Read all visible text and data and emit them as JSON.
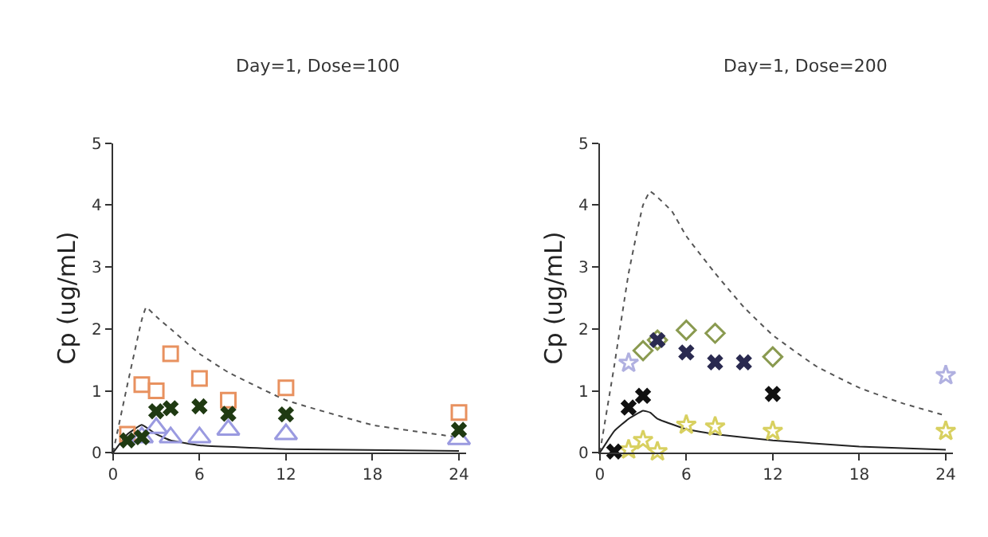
{
  "chart_data": [
    {
      "type": "scatter",
      "title": "Day=1, Dose=100",
      "ylabel": "Cp (ug/mL)",
      "xlim": [
        0,
        24.5
      ],
      "xticks": [
        0,
        6,
        12,
        18,
        24
      ],
      "ylim": [
        0,
        5
      ],
      "yticks": [
        0,
        1,
        2,
        3,
        4,
        5
      ],
      "series": [
        {
          "type": "line",
          "color": "#555555",
          "line_style": "dotted",
          "marker": "none",
          "x": [
            0,
            1,
            2,
            2.3,
            3,
            4,
            6,
            8,
            12,
            18,
            24
          ],
          "values": [
            0,
            1.1,
            2.15,
            2.35,
            2.2,
            2.0,
            1.6,
            1.3,
            0.85,
            0.45,
            0.25
          ]
        },
        {
          "type": "line",
          "color": "#222222",
          "line_style": "solid",
          "marker": "none",
          "x": [
            0,
            1,
            2,
            3,
            4,
            6,
            12,
            24
          ],
          "values": [
            0,
            0.3,
            0.45,
            0.3,
            0.2,
            0.12,
            0.06,
            0.03
          ]
        },
        {
          "color": "#e8915f",
          "marker": "square",
          "x": [
            1,
            2,
            3,
            4,
            6,
            8,
            12,
            24
          ],
          "values": [
            0.3,
            1.1,
            1.0,
            1.6,
            1.2,
            0.85,
            1.05,
            0.65
          ]
        },
        {
          "color": "#9a9ae0",
          "marker": "triangle",
          "x": [
            2,
            3,
            4,
            6,
            8,
            12,
            24
          ],
          "values": [
            0.25,
            0.4,
            0.25,
            0.25,
            0.37,
            0.3,
            0.22
          ]
        },
        {
          "color": "#1f3a12",
          "marker": "cross",
          "x": [
            1,
            2,
            3,
            4,
            6,
            8,
            12,
            24
          ],
          "values": [
            0.2,
            0.25,
            0.67,
            0.72,
            0.75,
            0.63,
            0.62,
            0.37
          ]
        }
      ]
    },
    {
      "type": "scatter",
      "title": "Day=1, Dose=200",
      "ylabel": "Cp (ug/mL)",
      "xlim": [
        0,
        24.5
      ],
      "xticks": [
        0,
        6,
        12,
        18,
        24
      ],
      "ylim": [
        0,
        5
      ],
      "yticks": [
        0,
        1,
        2,
        3,
        4,
        5
      ],
      "series": [
        {
          "type": "line",
          "color": "#555555",
          "line_style": "dotted",
          "marker": "none",
          "x": [
            0,
            1,
            2,
            3,
            3.5,
            5,
            6,
            8,
            10,
            12,
            15,
            18,
            21,
            24
          ],
          "values": [
            0,
            1.4,
            2.9,
            4.0,
            4.22,
            3.9,
            3.5,
            2.9,
            2.35,
            1.9,
            1.4,
            1.05,
            0.8,
            0.6
          ]
        },
        {
          "type": "line",
          "color": "#222222",
          "line_style": "solid",
          "marker": "none",
          "x": [
            0,
            1,
            2,
            3,
            3.5,
            4,
            6,
            8,
            12,
            18,
            24
          ],
          "values": [
            0,
            0.35,
            0.55,
            0.68,
            0.65,
            0.55,
            0.38,
            0.3,
            0.2,
            0.1,
            0.05
          ]
        },
        {
          "color": "#8a9a50",
          "marker": "diamond",
          "x": [
            3,
            4,
            6,
            8,
            12
          ],
          "values": [
            1.65,
            1.82,
            1.98,
            1.93,
            1.55
          ]
        },
        {
          "color": "#b0b0e0",
          "marker": "star",
          "x": [
            2,
            24
          ],
          "values": [
            1.45,
            1.25
          ]
        },
        {
          "color": "#d8d060",
          "marker": "star",
          "x": [
            2,
            3,
            4,
            6,
            8,
            12,
            24
          ],
          "values": [
            0.05,
            0.2,
            0.02,
            0.45,
            0.42,
            0.35,
            0.35
          ]
        },
        {
          "color": "#2a2a50",
          "marker": "cross",
          "x": [
            4,
            6,
            8,
            10
          ],
          "values": [
            1.82,
            1.62,
            1.46,
            1.46
          ]
        },
        {
          "color": "#111111",
          "marker": "cross",
          "x": [
            1,
            2,
            3,
            12
          ],
          "values": [
            0.02,
            0.73,
            0.92,
            0.95
          ]
        }
      ]
    }
  ]
}
